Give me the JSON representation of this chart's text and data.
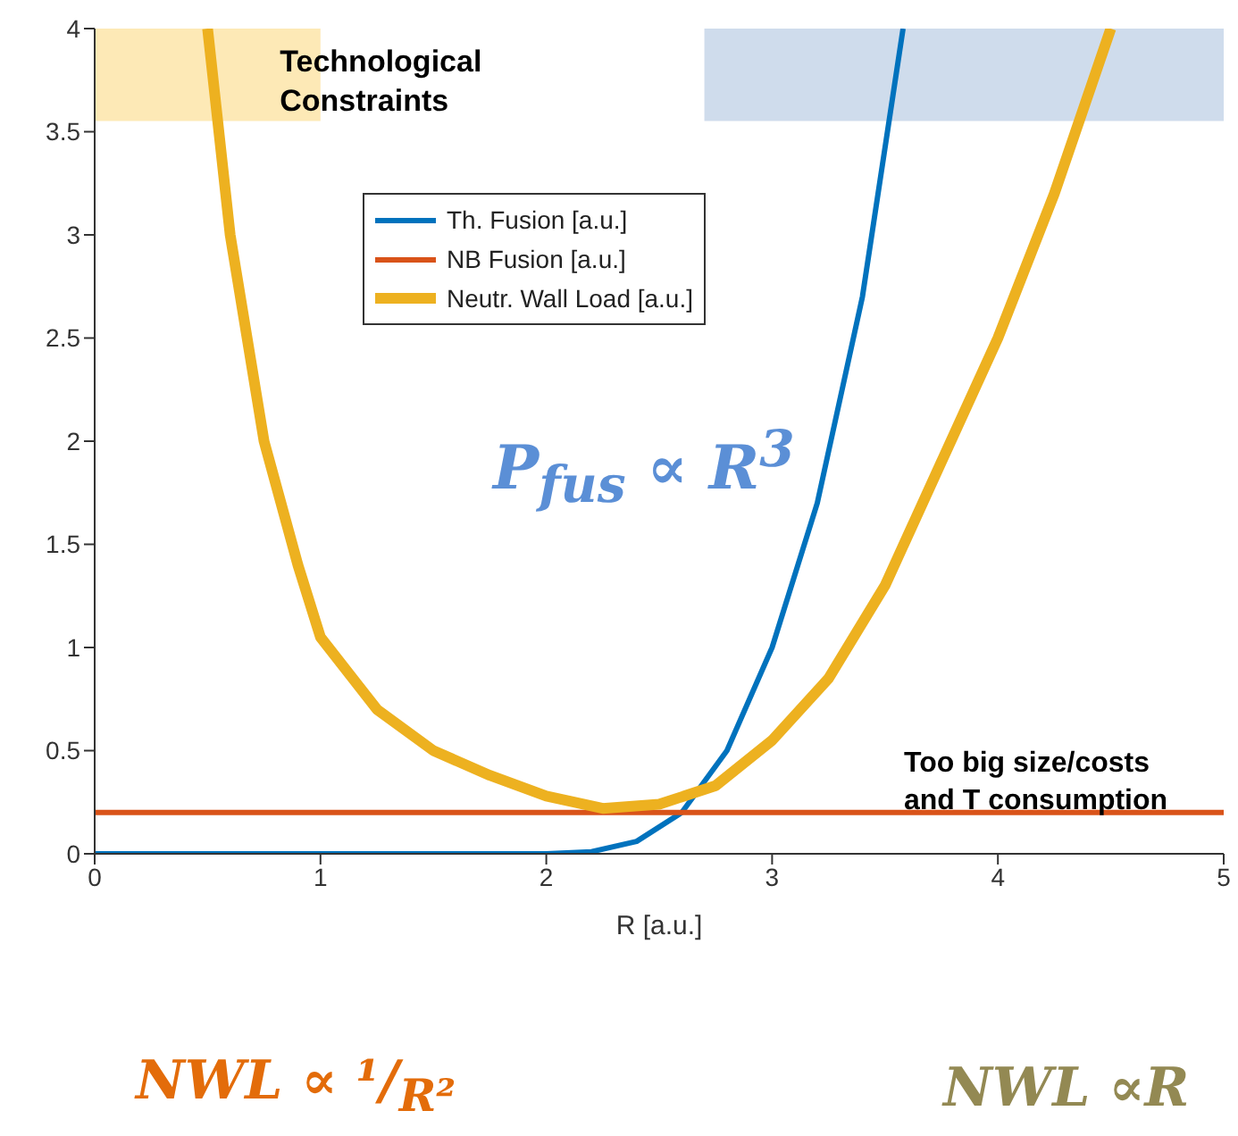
{
  "chart_data": {
    "type": "line",
    "xlabel": "R [a.u.]",
    "xlim": [
      0,
      5
    ],
    "xticks": [
      0,
      1,
      2,
      3,
      4,
      5
    ],
    "ylim": [
      0,
      4
    ],
    "yticks": [
      0,
      0.5,
      1,
      1.5,
      2,
      2.5,
      3,
      3.5,
      4
    ],
    "legend": "top",
    "marker": "none",
    "line_style": "solid",
    "series": [
      {
        "name": "Th. Fusion [a.u.]",
        "color": "#0072bd",
        "x": [
          0,
          1,
          2,
          2.2,
          2.4,
          2.6,
          2.8,
          3,
          3.2,
          3.4,
          3.58
        ],
        "values": [
          0,
          0,
          0,
          0.01,
          0.06,
          0.2,
          0.5,
          1,
          1.7,
          2.7,
          4
        ]
      },
      {
        "name": "NB Fusion [a.u.]",
        "color": "#d95319",
        "x": [
          0,
          5
        ],
        "values": [
          0.2,
          0.2
        ]
      },
      {
        "name": "Neutr. Wall Load [a.u.]",
        "color": "#edb120",
        "x": [
          0.5,
          0.6,
          0.75,
          0.9,
          1,
          1.25,
          1.5,
          1.75,
          2,
          2.25,
          2.5,
          2.75,
          3,
          3.25,
          3.5,
          3.75,
          4,
          4.25,
          4.5
        ],
        "values": [
          4,
          3,
          2,
          1.4,
          1.05,
          0.7,
          0.5,
          0.38,
          0.28,
          0.22,
          0.24,
          0.33,
          0.55,
          0.85,
          1.3,
          1.9,
          2.5,
          3.2,
          4
        ]
      }
    ],
    "bands": [
      {
        "axis": "x",
        "from": 0,
        "to": 1,
        "label": "Technological Constraints",
        "color": "#fde9b6"
      },
      {
        "axis": "x",
        "from": 2.7,
        "to": 5,
        "label": null,
        "color": "#cfdcec"
      }
    ],
    "annotations": [
      "P$_{fus}$ ∝ R$^{3}$",
      "Too big size/costs and T consumption",
      "NWL ∝ ¹/$_{R²}$",
      "NWL ∝R"
    ]
  }
}
